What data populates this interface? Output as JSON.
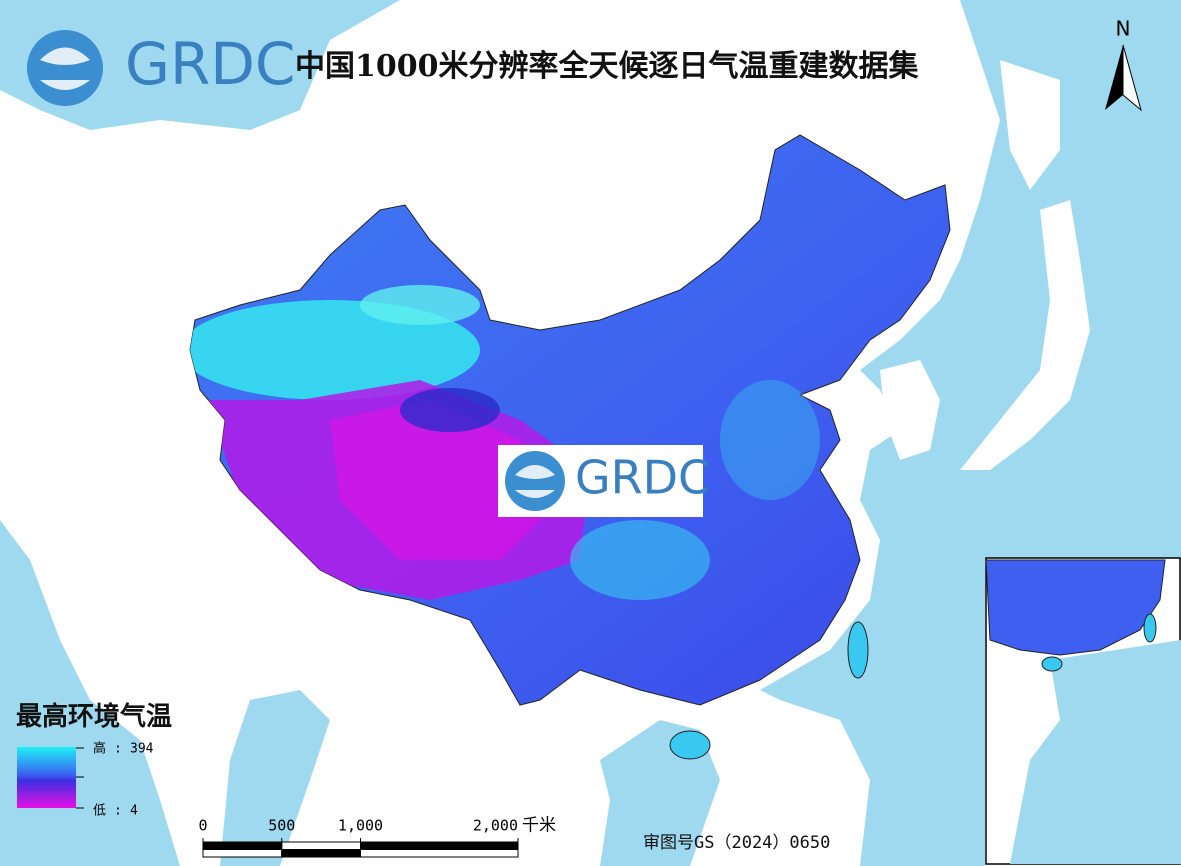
{
  "logo": {
    "text": "GRDC"
  },
  "title": "中国1000米分辨率全天候逐日气温重建数据集",
  "north": "N",
  "watermark": {
    "text": "GRDC"
  },
  "legend": {
    "title": "最高环境气温",
    "separator": ":",
    "high": {
      "label": "高",
      "value": 394
    },
    "low": {
      "label": "低",
      "value": 4
    }
  },
  "scale_bar": {
    "ticks": [
      0,
      500,
      {
        "value": 1000,
        "label": "1,000"
      },
      {
        "value": 2000,
        "label": "2,000"
      }
    ],
    "unit": "千米"
  },
  "approval": "审图号GS（2024）0650"
}
